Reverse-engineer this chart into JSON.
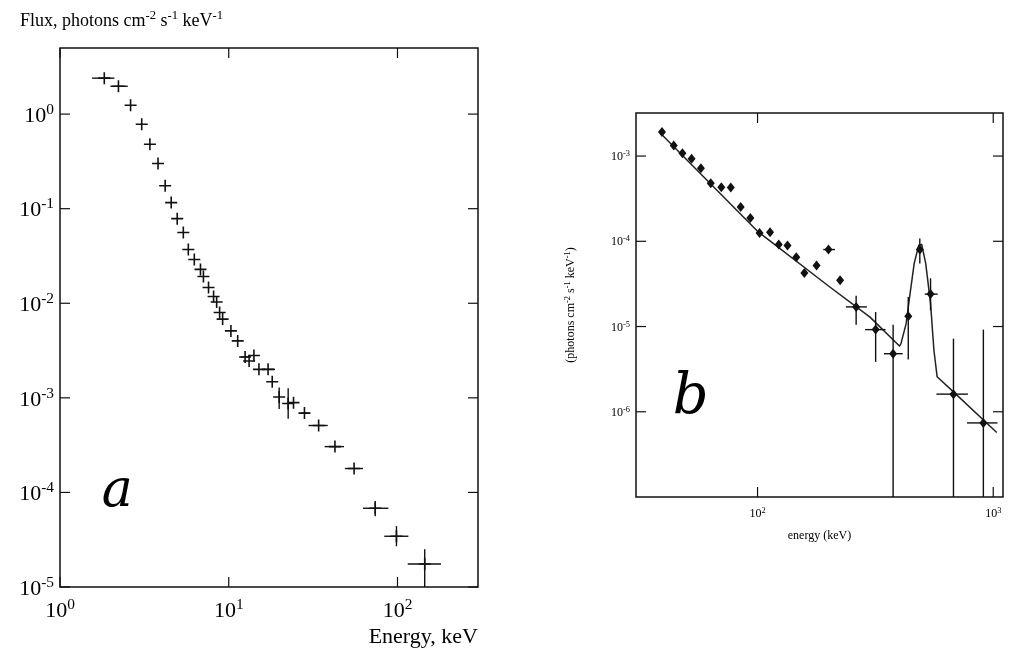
{
  "chart_data": [
    {
      "type": "scatter",
      "ylabel": "Flux, photons cm$^{-2}$ s$^{-1}$ keV$^{-1}$",
      "xlabel": "Energy, keV",
      "log": "xy",
      "grid": false,
      "xlim": [
        1,
        300
      ],
      "ylim": [
        1e-05,
        5
      ],
      "xticks": [
        {
          "value": 1,
          "label": "10$^{0}$"
        },
        {
          "value": 10,
          "label": "10$^{1}$"
        },
        {
          "value": 100,
          "label": "10$^{2}$"
        }
      ],
      "yticks": [
        {
          "value": 1e-05,
          "label": "10$^{-5}$"
        },
        {
          "value": 0.0001,
          "label": "10$^{-4}$"
        },
        {
          "value": 0.001,
          "label": "10$^{-3}$"
        },
        {
          "value": 0.01,
          "label": "10$^{-2}$"
        },
        {
          "value": 0.1,
          "label": "10$^{-1}$"
        },
        {
          "value": 1,
          "label": "10$^{0}$"
        }
      ],
      "annotations": [
        "a"
      ],
      "series": [
        {
          "marker": "cross",
          "color": "#111111",
          "x": [
            1.83,
            2.22,
            2.62,
            3.05,
            3.41,
            3.81,
            4.2,
            4.56,
            4.95,
            5.38,
            5.76,
            6.25,
            6.8,
            7.08,
            7.59,
            8.13,
            8.48,
            8.83,
            9.2,
            10.3,
            11.3,
            12.5,
            13.2,
            14.1,
            15.1,
            17.1,
            18.1,
            19.9,
            22.5,
            24.2,
            28.1,
            34.1,
            42.6,
            55.3,
            73.8,
            98.6,
            145
          ],
          "values": [
            2.4,
            1.97,
            1.24,
            0.78,
            0.48,
            0.3,
            0.175,
            0.116,
            0.0785,
            0.056,
            0.037,
            0.029,
            0.0228,
            0.0192,
            0.0147,
            0.0118,
            0.0103,
            0.008,
            0.0068,
            0.0051,
            0.004,
            0.0027,
            0.00245,
            0.0028,
            0.002,
            0.002,
            0.00148,
            0.00102,
            0.00087,
            0.00089,
            0.00069,
            0.00051,
            0.000305,
            0.000179,
            6.8e-05,
            3.44e-05,
            1.75e-05
          ],
          "xerrors": [
            [
              1.55,
              2.1
            ],
            [
              1.99,
              2.52
            ],
            null,
            null,
            null,
            null,
            null,
            null,
            null,
            null,
            null,
            null,
            null,
            null,
            null,
            null,
            null,
            null,
            null,
            null,
            null,
            [
              11.8,
              13.2
            ],
            null,
            null,
            null,
            [
              16.2,
              18.8
            ],
            null,
            null,
            null,
            null,
            [
              26.6,
              30.1
            ],
            [
              29.7,
              38.6
            ],
            [
              37,
              48.2
            ],
            [
              48.8,
              62.5
            ],
            [
              62.5,
              88.3
            ],
            [
              83.5,
              116
            ],
            [
              115,
              181
            ]
          ],
          "errors": [
            null,
            null,
            null,
            null,
            null,
            null,
            null,
            null,
            null,
            null,
            null,
            null,
            null,
            null,
            null,
            null,
            null,
            null,
            null,
            null,
            null,
            null,
            null,
            null,
            null,
            null,
            null,
            [
              0.00076,
              0.00129
            ],
            [
              0.0006,
              0.00126
            ],
            null,
            null,
            null,
            null,
            null,
            [
              5.6e-05,
              8.1e-05
            ],
            [
              2.7e-05,
              4.4e-05
            ],
            [
              1e-05,
              2.5e-05
            ]
          ]
        }
      ]
    },
    {
      "type": "scatter",
      "ylabel": "(photons cm$^{-2}$ s$^{-1}$ keV$^{-1}$)",
      "xlabel": "energy (keV)",
      "log": "xy",
      "grid": false,
      "xlim": [
        30.5,
        1100
      ],
      "ylim": [
        1e-07,
        0.0032
      ],
      "xticks": [
        {
          "value": 100,
          "label": "10$^{2}$"
        },
        {
          "value": 1000,
          "label": "10$^{3}$"
        }
      ],
      "yticks": [
        {
          "value": 1e-06,
          "label": "10$^{-6}$"
        },
        {
          "value": 1e-05,
          "label": "10$^{-5}$"
        },
        {
          "value": 0.0001,
          "label": "10$^{-4}$"
        },
        {
          "value": 0.001,
          "label": "10$^{-3}$"
        }
      ],
      "annotations": [
        "b"
      ],
      "series": [
        {
          "type": "line",
          "color": "#222222",
          "x": [
            39.3,
            100,
            200,
            300,
            400,
            406,
            427,
            441,
            462,
            483,
            497,
            517,
            542,
            560,
            578,
            678,
            1035
          ],
          "values": [
            0.00178,
            0.000131,
            2.99e-05,
            1.29e-05,
            5.9e-06,
            6.3e-06,
            1.08e-05,
            2.15e-05,
            5.5e-05,
            9e-05,
            9.2e-05,
            5.5e-05,
            1.86e-05,
            5.3e-06,
            2.57e-06,
            1.71e-06,
            5.7e-07
          ]
        },
        {
          "marker": "diamond",
          "color": "#111111",
          "x": [
            39.3,
            44.1,
            48,
            52.5,
            57.5,
            63.3,
            70.2,
            77,
            84.8,
            93.2,
            102,
            113,
            123,
            134,
            146,
            158,
            178,
            200,
            224,
            262,
            317,
            376,
            436,
            488,
            542,
            678,
            908
          ],
          "values": [
            0.00191,
            0.00133,
            0.00108,
            0.00093,
            0.00072,
            0.00048,
            0.00043,
            0.000427,
            0.000252,
            0.000187,
            0.000125,
            0.000128,
            9.2e-05,
            8.9e-05,
            6.5e-05,
            4.25e-05,
            5.2e-05,
            8e-05,
            3.5e-05,
            1.7e-05,
            9.2e-06,
            4.8e-06,
            1.32e-05,
            8e-05,
            2.4e-05,
            1.61e-06,
            7.4e-07
          ],
          "xerrors": [
            null,
            null,
            null,
            null,
            null,
            null,
            null,
            null,
            null,
            null,
            null,
            null,
            null,
            null,
            null,
            null,
            null,
            [
              190,
              213
            ],
            null,
            [
              237,
              291
            ],
            [
              286,
              349
            ],
            [
              344,
              413
            ],
            null,
            null,
            [
              512,
              581
            ],
            [
              574,
              781
            ],
            [
              774,
              1042
            ]
          ],
          "errors": [
            null,
            null,
            null,
            null,
            null,
            null,
            null,
            null,
            null,
            null,
            null,
            null,
            null,
            null,
            null,
            null,
            null,
            null,
            null,
            [
              1.05e-05,
              2.3e-05
            ],
            [
              3.85e-06,
              1.48e-05
            ],
            [
              1e-07,
              1.05e-05
            ],
            [
              4.1e-06,
              2.22e-05
            ],
            [
              5.5e-05,
              0.000108
            ],
            [
              1.55e-05,
              3.68e-05
            ],
            [
              1e-07,
              7.2e-06
            ],
            [
              1e-07,
              9.2e-06
            ]
          ]
        }
      ]
    }
  ]
}
